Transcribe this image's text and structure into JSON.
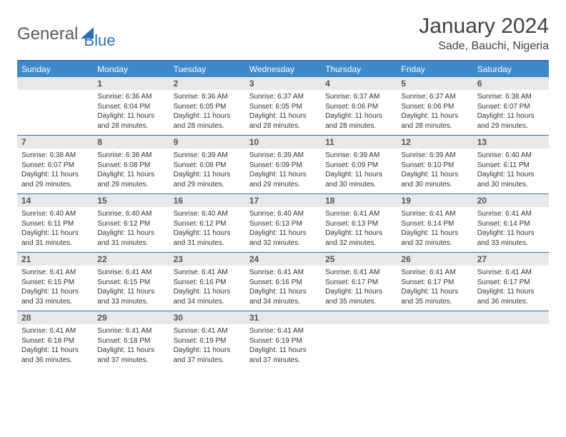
{
  "logo": {
    "part1": "General",
    "part2": "Blue"
  },
  "title": "January 2024",
  "location": "Sade, Bauchi, Nigeria",
  "colors": {
    "header_bg": "#3e8ac9",
    "header_text": "#ffffff",
    "border": "#2c6fb5",
    "daynum_bg": "#e8e8e8",
    "daynum_text": "#555555",
    "body_text": "#333333",
    "logo_gray": "#5a5a5a",
    "logo_blue": "#2c6fb5",
    "title_color": "#404040"
  },
  "day_names": [
    "Sunday",
    "Monday",
    "Tuesday",
    "Wednesday",
    "Thursday",
    "Friday",
    "Saturday"
  ],
  "weeks": [
    [
      {
        "n": "",
        "sunrise": "",
        "sunset": "",
        "day_h": "",
        "day_m": ""
      },
      {
        "n": "1",
        "sunrise": "6:36 AM",
        "sunset": "6:04 PM",
        "day_h": "11",
        "day_m": "28"
      },
      {
        "n": "2",
        "sunrise": "6:36 AM",
        "sunset": "6:05 PM",
        "day_h": "11",
        "day_m": "28"
      },
      {
        "n": "3",
        "sunrise": "6:37 AM",
        "sunset": "6:05 PM",
        "day_h": "11",
        "day_m": "28"
      },
      {
        "n": "4",
        "sunrise": "6:37 AM",
        "sunset": "6:06 PM",
        "day_h": "11",
        "day_m": "28"
      },
      {
        "n": "5",
        "sunrise": "6:37 AM",
        "sunset": "6:06 PM",
        "day_h": "11",
        "day_m": "28"
      },
      {
        "n": "6",
        "sunrise": "6:38 AM",
        "sunset": "6:07 PM",
        "day_h": "11",
        "day_m": "29"
      }
    ],
    [
      {
        "n": "7",
        "sunrise": "6:38 AM",
        "sunset": "6:07 PM",
        "day_h": "11",
        "day_m": "29"
      },
      {
        "n": "8",
        "sunrise": "6:38 AM",
        "sunset": "6:08 PM",
        "day_h": "11",
        "day_m": "29"
      },
      {
        "n": "9",
        "sunrise": "6:39 AM",
        "sunset": "6:08 PM",
        "day_h": "11",
        "day_m": "29"
      },
      {
        "n": "10",
        "sunrise": "6:39 AM",
        "sunset": "6:09 PM",
        "day_h": "11",
        "day_m": "29"
      },
      {
        "n": "11",
        "sunrise": "6:39 AM",
        "sunset": "6:09 PM",
        "day_h": "11",
        "day_m": "30"
      },
      {
        "n": "12",
        "sunrise": "6:39 AM",
        "sunset": "6:10 PM",
        "day_h": "11",
        "day_m": "30"
      },
      {
        "n": "13",
        "sunrise": "6:40 AM",
        "sunset": "6:11 PM",
        "day_h": "11",
        "day_m": "30"
      }
    ],
    [
      {
        "n": "14",
        "sunrise": "6:40 AM",
        "sunset": "6:11 PM",
        "day_h": "11",
        "day_m": "31"
      },
      {
        "n": "15",
        "sunrise": "6:40 AM",
        "sunset": "6:12 PM",
        "day_h": "11",
        "day_m": "31"
      },
      {
        "n": "16",
        "sunrise": "6:40 AM",
        "sunset": "6:12 PM",
        "day_h": "11",
        "day_m": "31"
      },
      {
        "n": "17",
        "sunrise": "6:40 AM",
        "sunset": "6:13 PM",
        "day_h": "11",
        "day_m": "32"
      },
      {
        "n": "18",
        "sunrise": "6:41 AM",
        "sunset": "6:13 PM",
        "day_h": "11",
        "day_m": "32"
      },
      {
        "n": "19",
        "sunrise": "6:41 AM",
        "sunset": "6:14 PM",
        "day_h": "11",
        "day_m": "32"
      },
      {
        "n": "20",
        "sunrise": "6:41 AM",
        "sunset": "6:14 PM",
        "day_h": "11",
        "day_m": "33"
      }
    ],
    [
      {
        "n": "21",
        "sunrise": "6:41 AM",
        "sunset": "6:15 PM",
        "day_h": "11",
        "day_m": "33"
      },
      {
        "n": "22",
        "sunrise": "6:41 AM",
        "sunset": "6:15 PM",
        "day_h": "11",
        "day_m": "33"
      },
      {
        "n": "23",
        "sunrise": "6:41 AM",
        "sunset": "6:16 PM",
        "day_h": "11",
        "day_m": "34"
      },
      {
        "n": "24",
        "sunrise": "6:41 AM",
        "sunset": "6:16 PM",
        "day_h": "11",
        "day_m": "34"
      },
      {
        "n": "25",
        "sunrise": "6:41 AM",
        "sunset": "6:17 PM",
        "day_h": "11",
        "day_m": "35"
      },
      {
        "n": "26",
        "sunrise": "6:41 AM",
        "sunset": "6:17 PM",
        "day_h": "11",
        "day_m": "35"
      },
      {
        "n": "27",
        "sunrise": "6:41 AM",
        "sunset": "6:17 PM",
        "day_h": "11",
        "day_m": "36"
      }
    ],
    [
      {
        "n": "28",
        "sunrise": "6:41 AM",
        "sunset": "6:18 PM",
        "day_h": "11",
        "day_m": "36"
      },
      {
        "n": "29",
        "sunrise": "6:41 AM",
        "sunset": "6:18 PM",
        "day_h": "11",
        "day_m": "37"
      },
      {
        "n": "30",
        "sunrise": "6:41 AM",
        "sunset": "6:19 PM",
        "day_h": "11",
        "day_m": "37"
      },
      {
        "n": "31",
        "sunrise": "6:41 AM",
        "sunset": "6:19 PM",
        "day_h": "11",
        "day_m": "37"
      },
      {
        "n": "",
        "sunrise": "",
        "sunset": "",
        "day_h": "",
        "day_m": ""
      },
      {
        "n": "",
        "sunrise": "",
        "sunset": "",
        "day_h": "",
        "day_m": ""
      },
      {
        "n": "",
        "sunrise": "",
        "sunset": "",
        "day_h": "",
        "day_m": ""
      }
    ]
  ],
  "labels": {
    "sunrise": "Sunrise:",
    "sunset": "Sunset:",
    "daylight": "Daylight:",
    "hours": "hours",
    "and": "and",
    "minutes": "minutes."
  }
}
